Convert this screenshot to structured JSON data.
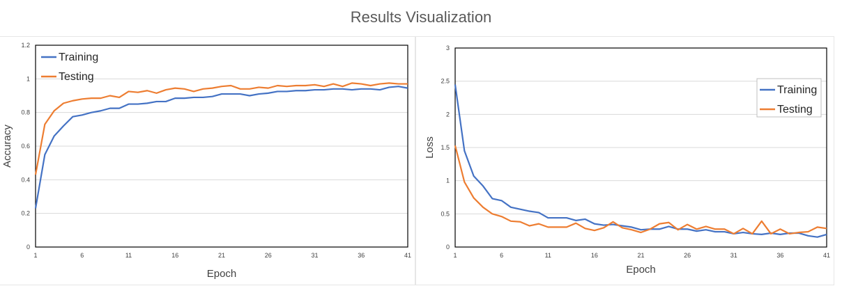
{
  "page": {
    "title": "Results Visualization"
  },
  "colors": {
    "training": "#4472C4",
    "testing": "#ED7D31",
    "grid": "#D9D9D9",
    "axis": "#000000"
  },
  "chart_data": [
    {
      "type": "line",
      "title": "",
      "xlabel": "Epoch",
      "ylabel": "Accuracy",
      "xlim": [
        1,
        41
      ],
      "ylim": [
        0,
        1.2
      ],
      "x_ticks": [
        "1",
        "6",
        "11",
        "16",
        "21",
        "26",
        "31",
        "36",
        "41"
      ],
      "y_ticks": [
        "0",
        "0.2",
        "0.4",
        "0.6",
        "0.8",
        "1",
        "1.2"
      ],
      "legend_position": "top-left",
      "legend_boxed": false,
      "series": [
        {
          "name": "Training",
          "color": "#4472C4",
          "values": [
            0.23,
            0.55,
            0.66,
            0.72,
            0.775,
            0.785,
            0.8,
            0.81,
            0.825,
            0.825,
            0.85,
            0.85,
            0.855,
            0.865,
            0.865,
            0.885,
            0.885,
            0.89,
            0.89,
            0.895,
            0.91,
            0.91,
            0.91,
            0.9,
            0.91,
            0.915,
            0.925,
            0.925,
            0.93,
            0.93,
            0.935,
            0.935,
            0.94,
            0.94,
            0.935,
            0.94,
            0.94,
            0.935,
            0.95,
            0.955,
            0.945
          ]
        },
        {
          "name": "Testing",
          "color": "#ED7D31",
          "values": [
            0.43,
            0.73,
            0.81,
            0.855,
            0.87,
            0.88,
            0.885,
            0.885,
            0.9,
            0.89,
            0.925,
            0.92,
            0.93,
            0.915,
            0.935,
            0.945,
            0.94,
            0.925,
            0.94,
            0.945,
            0.955,
            0.96,
            0.94,
            0.94,
            0.95,
            0.945,
            0.96,
            0.955,
            0.96,
            0.96,
            0.965,
            0.955,
            0.97,
            0.955,
            0.975,
            0.97,
            0.96,
            0.97,
            0.975,
            0.97,
            0.97
          ]
        }
      ]
    },
    {
      "type": "line",
      "title": "",
      "xlabel": "Epoch",
      "ylabel": "Loss",
      "xlim": [
        1,
        41
      ],
      "ylim": [
        0,
        3
      ],
      "x_ticks": [
        "1",
        "6",
        "11",
        "16",
        "21",
        "26",
        "31",
        "36",
        "41"
      ],
      "y_ticks": [
        "0",
        "0.5",
        "1",
        "1.5",
        "2",
        "2.5",
        "3"
      ],
      "legend_position": "top-right",
      "legend_boxed": true,
      "series": [
        {
          "name": "Training",
          "color": "#4472C4",
          "values": [
            2.45,
            1.45,
            1.07,
            0.92,
            0.73,
            0.7,
            0.6,
            0.57,
            0.54,
            0.52,
            0.44,
            0.44,
            0.44,
            0.4,
            0.42,
            0.35,
            0.33,
            0.34,
            0.32,
            0.3,
            0.26,
            0.27,
            0.27,
            0.31,
            0.27,
            0.27,
            0.24,
            0.26,
            0.23,
            0.23,
            0.2,
            0.22,
            0.2,
            0.19,
            0.21,
            0.19,
            0.21,
            0.21,
            0.17,
            0.15,
            0.19
          ]
        },
        {
          "name": "Testing",
          "color": "#ED7D31",
          "values": [
            1.53,
            0.98,
            0.74,
            0.6,
            0.5,
            0.46,
            0.39,
            0.38,
            0.32,
            0.35,
            0.3,
            0.3,
            0.3,
            0.36,
            0.28,
            0.25,
            0.29,
            0.38,
            0.29,
            0.26,
            0.22,
            0.27,
            0.35,
            0.37,
            0.26,
            0.34,
            0.27,
            0.31,
            0.27,
            0.27,
            0.2,
            0.28,
            0.2,
            0.39,
            0.2,
            0.27,
            0.2,
            0.22,
            0.23,
            0.3,
            0.28
          ]
        }
      ]
    }
  ]
}
